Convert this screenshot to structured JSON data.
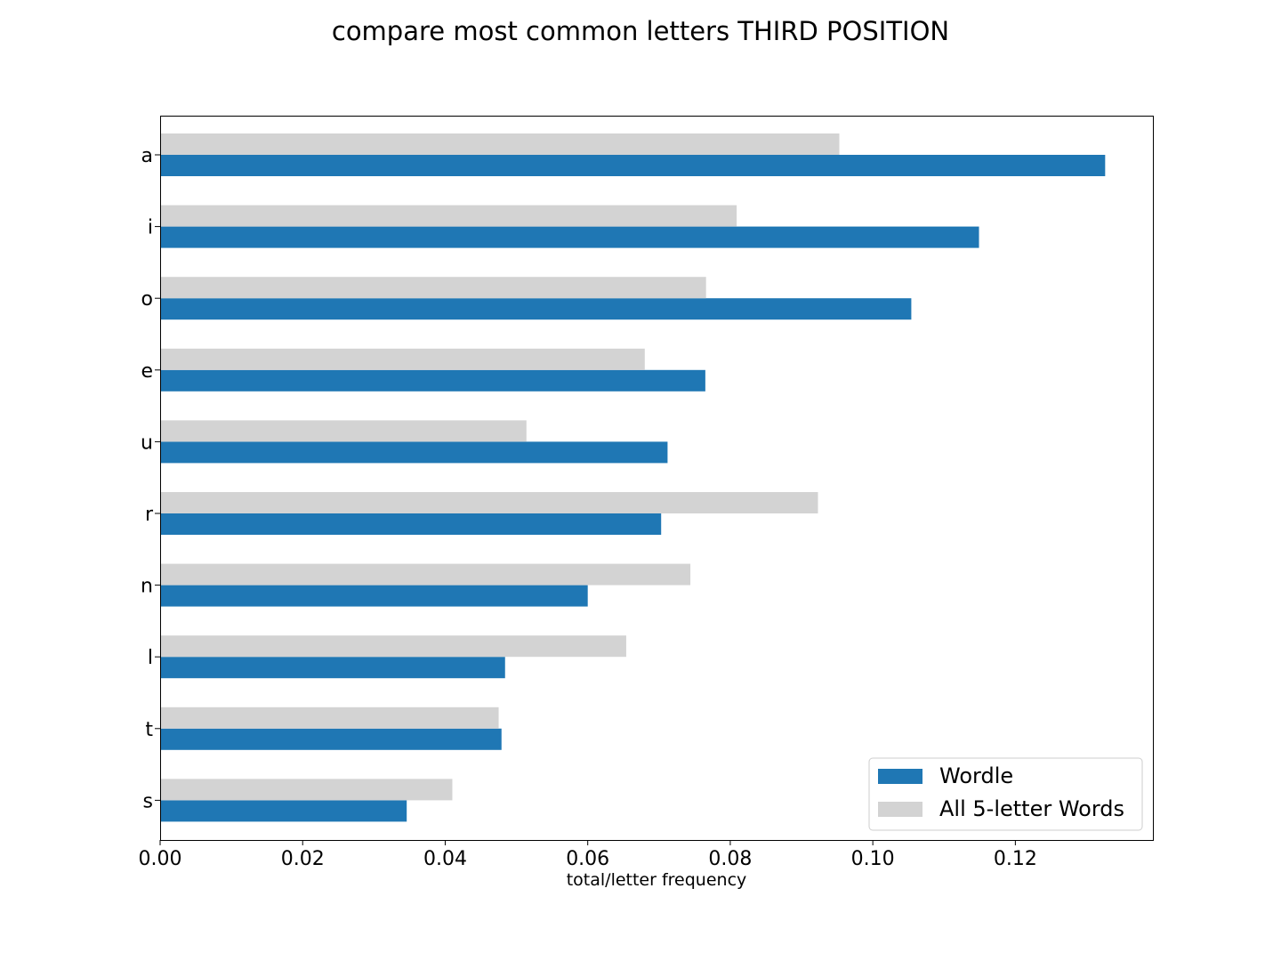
{
  "chart_data": {
    "type": "bar",
    "orientation": "horizontal",
    "title": "compare most common letters THIRD POSITION",
    "xlabel": "total/letter frequency",
    "ylabel": "",
    "categories": [
      "a",
      "i",
      "o",
      "e",
      "u",
      "r",
      "n",
      "l",
      "t",
      "s"
    ],
    "series": [
      {
        "name": "Wordle",
        "color": "#1f77b4",
        "values": [
          0.1326,
          0.1149,
          0.1054,
          0.0765,
          0.0712,
          0.0703,
          0.06,
          0.0484,
          0.0479,
          0.0346
        ]
      },
      {
        "name": "All 5-letter Words",
        "color": "#d3d3d3",
        "values": [
          0.0953,
          0.0809,
          0.0766,
          0.068,
          0.0514,
          0.0923,
          0.0744,
          0.0654,
          0.0475,
          0.041
        ]
      }
    ],
    "xlim": [
      0,
      0.1393
    ],
    "xticks": [
      0.0,
      0.02,
      0.04,
      0.06,
      0.08,
      0.1,
      0.12
    ],
    "xtick_labels": [
      "0.00",
      "0.02",
      "0.04",
      "0.06",
      "0.08",
      "0.10",
      "0.12"
    ],
    "legend_position": "lower-right",
    "grid": false
  }
}
